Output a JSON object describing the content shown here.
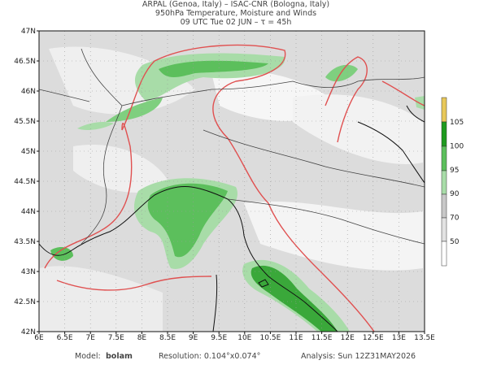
{
  "header": {
    "lines": [
      "ARPAL (Genoa, Italy)  –  ISAC-CNR (Bologna, Italy)",
      "950hPa Temperature, Moisture and Winds",
      "09 UTC Tue 02 JUN  –  τ = 45h"
    ]
  },
  "map": {
    "lon_ticks": [
      "6E",
      "6.5E",
      "7E",
      "7.5E",
      "8E",
      "8.5E",
      "9E",
      "9.5E",
      "10E",
      "10.5E",
      "11E",
      "11.5E",
      "12E",
      "12.5E",
      "13E",
      "13.5E"
    ],
    "lat_ticks": [
      "42N",
      "42.5N",
      "43N",
      "43.5N",
      "44N",
      "44.5N",
      "45N",
      "45.5N",
      "46N",
      "46.5N",
      "47N"
    ]
  },
  "colorbar": {
    "labels": [
      "105",
      "100",
      "95",
      "90",
      "70",
      "50"
    ]
  },
  "footer": {
    "model_label": "Model:",
    "model": "bolam",
    "resolution": "Resolution: 0.104°x0.074°",
    "analysis": "Analysis: Sun 12Z31MAY2026"
  }
}
